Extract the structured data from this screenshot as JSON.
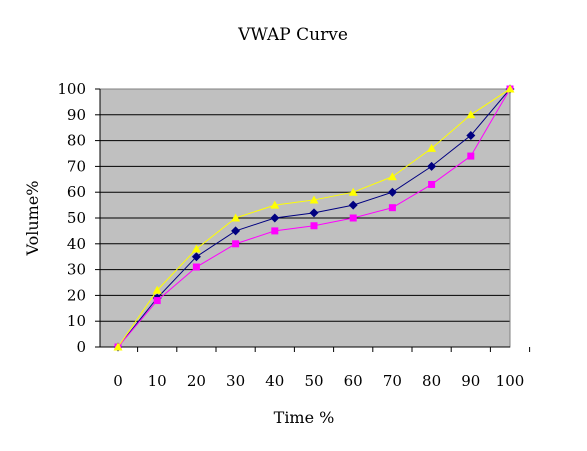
{
  "chart_data": {
    "type": "line",
    "title": "VWAP Curve",
    "xlabel": "Time %",
    "ylabel": "Volume%",
    "categories": [
      "0",
      "10",
      "20",
      "30",
      "40",
      "50",
      "60",
      "70",
      "80",
      "90",
      "100"
    ],
    "y_ticks": [
      "0",
      "10",
      "20",
      "30",
      "40",
      "50",
      "60",
      "70",
      "80",
      "90",
      "100"
    ],
    "ylim": [
      0,
      100
    ],
    "grid": true,
    "legend": "none",
    "plot_background": "#c0c0c0",
    "series": [
      {
        "color": "#000080",
        "marker": "diamond",
        "values": [
          0,
          19,
          35,
          45,
          50,
          52,
          55,
          60,
          70,
          82,
          100
        ]
      },
      {
        "color": "#ff00ff",
        "marker": "square",
        "values": [
          0,
          18,
          31,
          40,
          45,
          47,
          50,
          54,
          63,
          74,
          100
        ]
      },
      {
        "color": "#ffff00",
        "marker": "triangle",
        "values": [
          0,
          22,
          38,
          50,
          55,
          57,
          60,
          66,
          77,
          90,
          100
        ]
      }
    ]
  }
}
